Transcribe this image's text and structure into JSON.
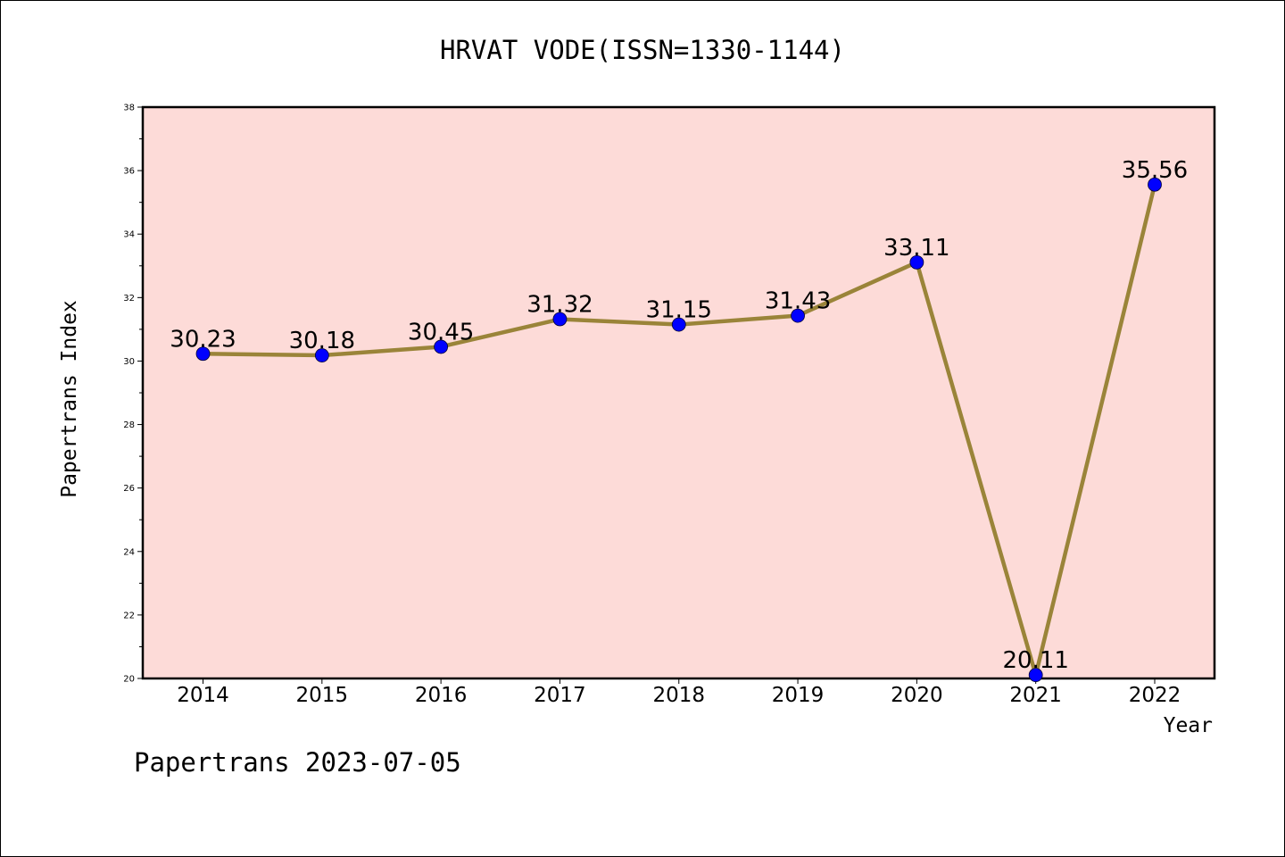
{
  "chart_data": {
    "type": "line",
    "title": "HRVAT VODE(ISSN=1330-1144)",
    "xlabel": "Year",
    "ylabel": "Papertrans Index",
    "categories": [
      "2014",
      "2015",
      "2016",
      "2017",
      "2018",
      "2019",
      "2020",
      "2021",
      "2022"
    ],
    "series": [
      {
        "values": [
          30.23,
          30.18,
          30.45,
          31.32,
          31.15,
          31.43,
          33.11,
          20.11,
          35.56
        ],
        "value_labels": [
          "30.23",
          "30.18",
          "30.45",
          "31.32",
          "31.15",
          "31.43",
          "33.11",
          "20.11",
          "35.56"
        ]
      }
    ],
    "ylim": [
      20,
      38
    ],
    "y_ticks": [
      "20",
      "22",
      "24",
      "26",
      "28",
      "30",
      "32",
      "34",
      "36",
      "38"
    ],
    "grid": false,
    "legend": "none",
    "colors": {
      "plot_background": "#fddbd8",
      "line": "#9a8439",
      "marker": "#0000ff"
    }
  },
  "footer": {
    "text": "Papertrans 2023-07-05"
  }
}
